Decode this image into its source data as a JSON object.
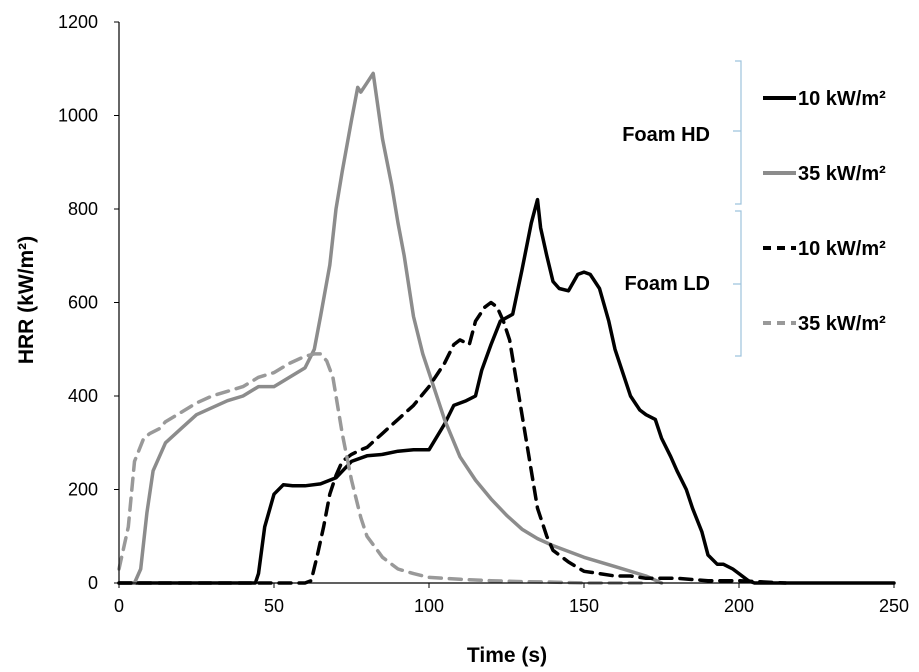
{
  "chart_data": {
    "type": "line",
    "xlabel": "Time (s)",
    "ylabel": "HRR (kW/m²)",
    "xlim": [
      0,
      250
    ],
    "ylim": [
      0,
      1200
    ],
    "xticks": [
      0,
      50,
      100,
      150,
      200,
      250
    ],
    "yticks": [
      0,
      200,
      400,
      600,
      800,
      1000,
      1200
    ],
    "grid": false,
    "legend_position": "right",
    "legend_groups": [
      {
        "label": "Foam HD",
        "entries": [
          "10 kW/m²",
          "35 kW/m²"
        ]
      },
      {
        "label": "Foam LD",
        "entries": [
          "10 kW/m²",
          "35 kW/m²"
        ]
      }
    ],
    "series": [
      {
        "name": "10 kW/m²",
        "group": "Foam HD",
        "color": "#000000",
        "dash": "solid",
        "x": [
          0,
          40,
          44,
          45,
          47,
          50,
          53,
          56,
          60,
          65,
          70,
          75,
          80,
          85,
          90,
          95,
          100,
          105,
          108,
          112,
          115,
          117,
          120,
          123,
          127,
          130,
          133,
          135,
          136,
          138,
          140,
          142,
          145,
          148,
          150,
          152,
          155,
          158,
          160,
          163,
          165,
          168,
          170,
          173,
          175,
          178,
          180,
          183,
          185,
          188,
          190,
          193,
          195,
          198,
          200,
          203,
          205,
          210,
          215,
          250
        ],
        "y": [
          0,
          0,
          0,
          20,
          120,
          190,
          210,
          208,
          208,
          212,
          225,
          260,
          272,
          275,
          282,
          285,
          285,
          340,
          380,
          390,
          400,
          455,
          510,
          560,
          575,
          670,
          770,
          820,
          760,
          700,
          645,
          630,
          625,
          660,
          665,
          660,
          630,
          560,
          500,
          440,
          400,
          370,
          360,
          350,
          310,
          270,
          240,
          200,
          160,
          110,
          60,
          40,
          40,
          30,
          20,
          5,
          0,
          0,
          0,
          0
        ]
      },
      {
        "name": "35 kW/m²",
        "group": "Foam HD",
        "color": "#8c8c8c",
        "dash": "solid",
        "x": [
          0,
          5,
          7,
          9,
          11,
          15,
          20,
          25,
          30,
          35,
          40,
          45,
          50,
          55,
          60,
          63,
          65,
          68,
          70,
          72,
          75,
          77,
          78,
          80,
          82,
          85,
          88,
          90,
          92,
          95,
          98,
          100,
          103,
          105,
          110,
          115,
          120,
          125,
          130,
          135,
          140,
          150,
          160,
          170,
          175
        ],
        "y": [
          0,
          0,
          30,
          150,
          240,
          300,
          330,
          360,
          375,
          390,
          400,
          420,
          420,
          440,
          460,
          500,
          570,
          680,
          800,
          880,
          990,
          1060,
          1050,
          1070,
          1090,
          950,
          850,
          770,
          700,
          570,
          490,
          450,
          390,
          350,
          270,
          220,
          180,
          145,
          115,
          95,
          80,
          55,
          35,
          15,
          0
        ]
      },
      {
        "name": "10 kW/m²",
        "group": "Foam LD",
        "color": "#000000",
        "dash": "dashed",
        "x": [
          0,
          60,
          62,
          64,
          66,
          68,
          70,
          72,
          75,
          78,
          80,
          85,
          90,
          95,
          100,
          105,
          108,
          110,
          113,
          115,
          118,
          120,
          122,
          124,
          126,
          128,
          130,
          132,
          135,
          138,
          140,
          145,
          150,
          155,
          160,
          165,
          170,
          180,
          190,
          200,
          215
        ],
        "y": [
          0,
          0,
          5,
          60,
          120,
          190,
          230,
          260,
          275,
          285,
          290,
          320,
          350,
          380,
          420,
          470,
          510,
          520,
          510,
          560,
          590,
          600,
          590,
          560,
          520,
          440,
          360,
          280,
          160,
          100,
          70,
          45,
          25,
          20,
          15,
          15,
          10,
          10,
          5,
          5,
          0
        ]
      },
      {
        "name": "35 kW/m²",
        "group": "Foam LD",
        "color": "#999999",
        "dash": "dashed",
        "x": [
          0,
          1,
          3,
          5,
          8,
          10,
          13,
          15,
          20,
          25,
          30,
          35,
          40,
          45,
          50,
          55,
          60,
          63,
          65,
          67,
          69,
          70,
          72,
          75,
          78,
          80,
          85,
          90,
          95,
          100,
          110,
          120,
          130,
          140,
          150,
          160,
          170
        ],
        "y": [
          30,
          60,
          120,
          260,
          310,
          320,
          330,
          345,
          365,
          385,
          400,
          410,
          420,
          440,
          450,
          470,
          485,
          490,
          490,
          475,
          440,
          400,
          320,
          220,
          140,
          100,
          55,
          30,
          20,
          12,
          8,
          5,
          3,
          2,
          0,
          0,
          0
        ]
      }
    ]
  }
}
